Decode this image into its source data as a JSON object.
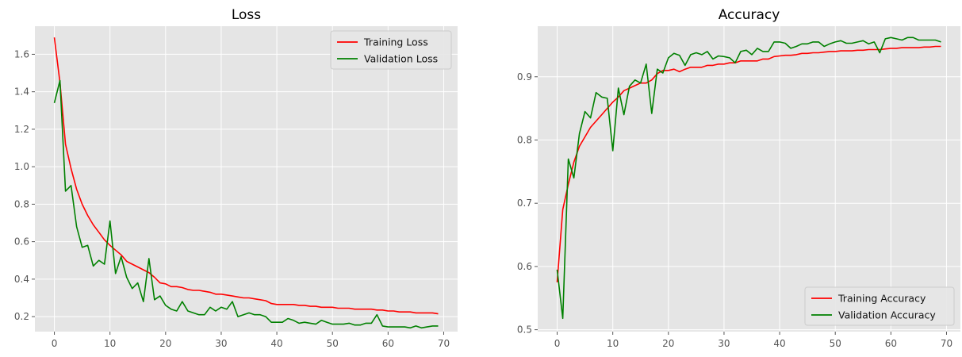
{
  "chart_data": [
    {
      "type": "line",
      "title": "Loss",
      "xlabel": "",
      "ylabel": "",
      "xlim": [
        -3.5,
        72.5
      ],
      "ylim": [
        0.12,
        1.75
      ],
      "xticks": [
        0,
        10,
        20,
        30,
        40,
        50,
        60,
        70
      ],
      "yticks": [
        0.2,
        0.4,
        0.6,
        0.8,
        1.0,
        1.2,
        1.4,
        1.6
      ],
      "ytick_labels": [
        "0.2",
        "0.4",
        "0.6",
        "0.8",
        "1.0",
        "1.2",
        "1.4",
        "1.6"
      ],
      "grid": true,
      "legend_position": "top-right",
      "series": [
        {
          "name": "Training Loss",
          "color": "#ff0000",
          "x": [
            0,
            1,
            2,
            3,
            4,
            5,
            6,
            7,
            8,
            9,
            10,
            11,
            12,
            13,
            14,
            15,
            16,
            17,
            18,
            19,
            20,
            21,
            22,
            23,
            24,
            25,
            26,
            27,
            28,
            29,
            30,
            31,
            32,
            33,
            34,
            35,
            36,
            37,
            38,
            39,
            40,
            41,
            42,
            43,
            44,
            45,
            46,
            47,
            48,
            49,
            50,
            51,
            52,
            53,
            54,
            55,
            56,
            57,
            58,
            59,
            60,
            61,
            62,
            63,
            64,
            65,
            66,
            67,
            68,
            69
          ],
          "values": [
            1.69,
            1.45,
            1.12,
            0.99,
            0.88,
            0.8,
            0.74,
            0.69,
            0.65,
            0.61,
            0.58,
            0.555,
            0.53,
            0.495,
            0.48,
            0.465,
            0.45,
            0.435,
            0.41,
            0.38,
            0.375,
            0.36,
            0.36,
            0.355,
            0.345,
            0.34,
            0.34,
            0.335,
            0.33,
            0.32,
            0.32,
            0.315,
            0.31,
            0.305,
            0.3,
            0.3,
            0.295,
            0.29,
            0.285,
            0.27,
            0.265,
            0.265,
            0.265,
            0.265,
            0.26,
            0.26,
            0.255,
            0.255,
            0.25,
            0.25,
            0.25,
            0.245,
            0.245,
            0.245,
            0.24,
            0.24,
            0.24,
            0.24,
            0.235,
            0.235,
            0.23,
            0.23,
            0.225,
            0.225,
            0.225,
            0.22,
            0.22,
            0.22,
            0.22,
            0.215
          ]
        },
        {
          "name": "Validation Loss",
          "color": "#008000",
          "x": [
            0,
            1,
            2,
            3,
            4,
            5,
            6,
            7,
            8,
            9,
            10,
            11,
            12,
            13,
            14,
            15,
            16,
            17,
            18,
            19,
            20,
            21,
            22,
            23,
            24,
            25,
            26,
            27,
            28,
            29,
            30,
            31,
            32,
            33,
            34,
            35,
            36,
            37,
            38,
            39,
            40,
            41,
            42,
            43,
            44,
            45,
            46,
            47,
            48,
            49,
            50,
            51,
            52,
            53,
            54,
            55,
            56,
            57,
            58,
            59,
            60,
            61,
            62,
            63,
            64,
            65,
            66,
            67,
            68,
            69
          ],
          "values": [
            1.34,
            1.46,
            0.87,
            0.9,
            0.68,
            0.57,
            0.58,
            0.47,
            0.5,
            0.48,
            0.71,
            0.43,
            0.52,
            0.41,
            0.35,
            0.38,
            0.28,
            0.51,
            0.29,
            0.31,
            0.26,
            0.24,
            0.23,
            0.28,
            0.23,
            0.22,
            0.21,
            0.21,
            0.25,
            0.23,
            0.25,
            0.24,
            0.28,
            0.2,
            0.21,
            0.22,
            0.21,
            0.21,
            0.2,
            0.17,
            0.17,
            0.17,
            0.19,
            0.18,
            0.165,
            0.17,
            0.165,
            0.16,
            0.18,
            0.17,
            0.16,
            0.16,
            0.16,
            0.165,
            0.155,
            0.155,
            0.165,
            0.165,
            0.21,
            0.15,
            0.145,
            0.145,
            0.145,
            0.145,
            0.14,
            0.15,
            0.14,
            0.145,
            0.15,
            0.15
          ]
        }
      ]
    },
    {
      "type": "line",
      "title": "Accuracy",
      "xlabel": "",
      "ylabel": "",
      "xlim": [
        -3.5,
        72.5
      ],
      "ylim": [
        0.497,
        0.98
      ],
      "xticks": [
        0,
        10,
        20,
        30,
        40,
        50,
        60,
        70
      ],
      "yticks": [
        0.5,
        0.6,
        0.7,
        0.8,
        0.9
      ],
      "ytick_labels": [
        "0.5",
        "0.6",
        "0.7",
        "0.8",
        "0.9"
      ],
      "grid": true,
      "legend_position": "bottom-right",
      "series": [
        {
          "name": "Training Accuracy",
          "color": "#ff0000",
          "x": [
            0,
            1,
            2,
            3,
            4,
            5,
            6,
            7,
            8,
            9,
            10,
            11,
            12,
            13,
            14,
            15,
            16,
            17,
            18,
            19,
            20,
            21,
            22,
            23,
            24,
            25,
            26,
            27,
            28,
            29,
            30,
            31,
            32,
            33,
            34,
            35,
            36,
            37,
            38,
            39,
            40,
            41,
            42,
            43,
            44,
            45,
            46,
            47,
            48,
            49,
            50,
            51,
            52,
            53,
            54,
            55,
            56,
            57,
            58,
            59,
            60,
            61,
            62,
            63,
            64,
            65,
            66,
            67,
            68,
            69
          ],
          "values": [
            0.575,
            0.69,
            0.73,
            0.765,
            0.79,
            0.805,
            0.82,
            0.83,
            0.84,
            0.85,
            0.86,
            0.868,
            0.878,
            0.882,
            0.886,
            0.89,
            0.89,
            0.895,
            0.905,
            0.91,
            0.91,
            0.912,
            0.908,
            0.912,
            0.915,
            0.915,
            0.915,
            0.918,
            0.918,
            0.92,
            0.92,
            0.922,
            0.922,
            0.925,
            0.925,
            0.925,
            0.925,
            0.928,
            0.928,
            0.932,
            0.933,
            0.934,
            0.934,
            0.935,
            0.937,
            0.937,
            0.938,
            0.938,
            0.939,
            0.94,
            0.94,
            0.941,
            0.941,
            0.941,
            0.942,
            0.942,
            0.943,
            0.943,
            0.943,
            0.944,
            0.945,
            0.945,
            0.946,
            0.946,
            0.946,
            0.946,
            0.947,
            0.947,
            0.948,
            0.948
          ]
        },
        {
          "name": "Validation Accuracy",
          "color": "#008000",
          "x": [
            0,
            1,
            2,
            3,
            4,
            5,
            6,
            7,
            8,
            9,
            10,
            11,
            12,
            13,
            14,
            15,
            16,
            17,
            18,
            19,
            20,
            21,
            22,
            23,
            24,
            25,
            26,
            27,
            28,
            29,
            30,
            31,
            32,
            33,
            34,
            35,
            36,
            37,
            38,
            39,
            40,
            41,
            42,
            43,
            44,
            45,
            46,
            47,
            48,
            49,
            50,
            51,
            52,
            53,
            54,
            55,
            56,
            57,
            58,
            59,
            60,
            61,
            62,
            63,
            64,
            65,
            66,
            67,
            68,
            69
          ],
          "values": [
            0.595,
            0.518,
            0.77,
            0.74,
            0.81,
            0.845,
            0.835,
            0.875,
            0.868,
            0.866,
            0.783,
            0.882,
            0.84,
            0.885,
            0.895,
            0.89,
            0.92,
            0.842,
            0.912,
            0.906,
            0.93,
            0.937,
            0.934,
            0.918,
            0.935,
            0.938,
            0.935,
            0.94,
            0.928,
            0.933,
            0.932,
            0.93,
            0.922,
            0.94,
            0.942,
            0.935,
            0.945,
            0.94,
            0.94,
            0.955,
            0.955,
            0.953,
            0.945,
            0.948,
            0.952,
            0.952,
            0.955,
            0.955,
            0.948,
            0.952,
            0.955,
            0.957,
            0.953,
            0.953,
            0.955,
            0.957,
            0.952,
            0.955,
            0.938,
            0.96,
            0.962,
            0.96,
            0.958,
            0.962,
            0.962,
            0.958,
            0.958,
            0.958,
            0.958,
            0.955
          ]
        }
      ]
    }
  ]
}
